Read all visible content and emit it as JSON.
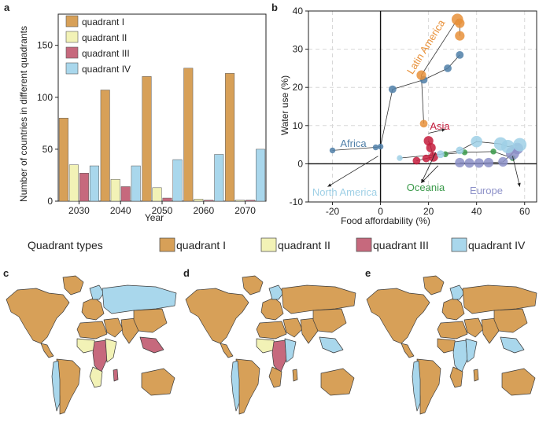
{
  "colors": {
    "q1": "#d7a058",
    "q2": "#f2f2b6",
    "q3": "#c6697d",
    "q4": "#a9d7ec",
    "ocean": "#ffffff",
    "border": "#3a3a3a",
    "africa": "#4f7fa8",
    "latin": "#e8913a",
    "asia": "#c41c3c",
    "oceania": "#3a9a4a",
    "europe": "#8c90c8",
    "north_america": "#9fd0e6"
  },
  "panel_labels": {
    "a": "a",
    "b": "b",
    "c": "c",
    "d": "d",
    "e": "e"
  },
  "chart_data": [
    {
      "type": "bar",
      "panel": "a",
      "title": "",
      "xlabel": "Year",
      "ylabel": "Number of countries in different quadrants",
      "ylim": [
        0,
        180
      ],
      "yticks": [
        0,
        50,
        100,
        150
      ],
      "categories": [
        "2030",
        "2040",
        "2050",
        "2060",
        "2070"
      ],
      "legend_position": "top-left",
      "series": [
        {
          "name": "quadrant I",
          "color_key": "q1",
          "values": [
            80,
            107,
            120,
            128,
            123
          ]
        },
        {
          "name": "quadrant II",
          "color_key": "q2",
          "values": [
            35,
            21,
            13,
            2,
            1
          ]
        },
        {
          "name": "quadrant III",
          "color_key": "q3",
          "values": [
            27,
            14,
            3,
            1,
            1
          ]
        },
        {
          "name": "quadrant IV",
          "color_key": "q4",
          "values": [
            34,
            34,
            40,
            45,
            50
          ]
        }
      ]
    },
    {
      "type": "scatter",
      "panel": "b",
      "xlabel": "Food affordability (%)",
      "ylabel": "Water use (%)",
      "xlim": [
        -30,
        65
      ],
      "ylim": [
        -10,
        40
      ],
      "xticks": [
        -20,
        0,
        20,
        40,
        60
      ],
      "yticks": [
        -10,
        0,
        10,
        20,
        30,
        40
      ],
      "grid": true,
      "regions": [
        {
          "name": "Africa",
          "color_key": "africa",
          "path": [
            [
              -20,
              3.5
            ],
            [
              -10,
              4
            ],
            [
              -2,
              4.3
            ],
            [
              0,
              4.5
            ]
          ],
          "points": [
            [
              -20,
              3.5
            ],
            [
              -2,
              4.3
            ],
            [
              0,
              4.5
            ],
            [
              5,
              19.5
            ],
            [
              18,
              22
            ],
            [
              28,
              25
            ],
            [
              33,
              28.5
            ]
          ],
          "sizes": [
            1,
            1,
            1,
            2,
            2,
            2,
            2
          ]
        },
        {
          "name": "Latin America",
          "color_key": "latin",
          "points": [
            [
              18,
              10.5
            ],
            [
              17,
              23.2
            ],
            [
              32,
              37.8
            ],
            [
              33,
              36.8
            ],
            [
              33,
              33.5
            ]
          ],
          "sizes": [
            2,
            3,
            4,
            3,
            3
          ]
        },
        {
          "name": "Asia",
          "color_key": "asia",
          "points": [
            [
              20,
              6
            ],
            [
              21,
              4.2
            ],
            [
              22,
              1.8
            ],
            [
              19,
              1.4
            ],
            [
              15,
              0.8
            ]
          ],
          "sizes": [
            3,
            3,
            3,
            2,
            2
          ]
        },
        {
          "name": "Oceania",
          "color_key": "oceania",
          "points": [
            [
              27,
              2.5
            ],
            [
              35,
              3
            ],
            [
              47,
              3.2
            ],
            [
              55,
              1.5
            ]
          ],
          "sizes": [
            1,
            1,
            1,
            1
          ]
        },
        {
          "name": "Europe",
          "color_key": "europe",
          "points": [
            [
              33,
              0.3
            ],
            [
              37,
              0.2
            ],
            [
              41,
              0.2
            ],
            [
              45,
              0.3
            ],
            [
              51,
              0.5
            ],
            [
              55,
              2.8
            ],
            [
              57,
              4
            ]
          ],
          "sizes": [
            3,
            3,
            3,
            3,
            3,
            5,
            4
          ]
        },
        {
          "name": "North America",
          "color_key": "north_america",
          "points": [
            [
              8,
              1.5
            ],
            [
              25,
              2.5
            ],
            [
              33,
              3.5
            ],
            [
              40,
              5.8
            ],
            [
              50,
              5.2
            ],
            [
              53,
              4.5
            ],
            [
              58,
              5
            ]
          ],
          "sizes": [
            1,
            2,
            2,
            4,
            5,
            5,
            5
          ]
        }
      ],
      "annotations": [
        {
          "text": "Latin America",
          "color_key": "latin"
        },
        {
          "text": "Asia",
          "color_key": "asia"
        },
        {
          "text": "Africa",
          "color_key": "africa"
        },
        {
          "text": "North America",
          "color_key": "north_america"
        },
        {
          "text": "Oceania",
          "color_key": "oceania"
        },
        {
          "text": "Europe",
          "color_key": "europe"
        }
      ]
    }
  ],
  "quadrant_legend": {
    "title": "Quadrant types",
    "items": [
      {
        "label": "quadrant I",
        "color_key": "q1"
      },
      {
        "label": "quadrant II",
        "color_key": "q2"
      },
      {
        "label": "quadrant III",
        "color_key": "q3"
      },
      {
        "label": "quadrant IV",
        "color_key": "q4"
      }
    ]
  },
  "maps": [
    {
      "panel": "c",
      "regions": {
        "north_america": "q1",
        "greenland": "q1",
        "central_america": "q1",
        "south_america": "q1",
        "south_america_west": "q4",
        "europe": "q1",
        "scandinavia": "q4",
        "russia": "q4",
        "middle_east": "q1",
        "north_africa": "q1",
        "west_africa": "q2",
        "central_africa": "q3",
        "east_africa": "q2",
        "south_africa": "q2",
        "south_asia": "q1",
        "east_asia": "q1",
        "southeast_asia": "q3",
        "australia": "q1",
        "madagascar": "q3"
      }
    },
    {
      "panel": "d",
      "regions": {
        "north_america": "q1",
        "greenland": "q1",
        "central_america": "q1",
        "south_america": "q1",
        "south_america_west": "q4",
        "europe": "q1",
        "scandinavia": "q4",
        "russia": "q1",
        "middle_east": "q1",
        "north_africa": "q1",
        "west_africa": "q2",
        "central_africa": "q3",
        "east_africa": "q4",
        "south_africa": "q1",
        "south_asia": "q1",
        "east_asia": "q1",
        "southeast_asia": "q4",
        "australia": "q1",
        "madagascar": "q1"
      }
    },
    {
      "panel": "e",
      "regions": {
        "north_america": "q1",
        "greenland": "q1",
        "central_america": "q1",
        "south_america": "q1",
        "south_america_west": "q4",
        "europe": "q1",
        "scandinavia": "q4",
        "russia": "q1",
        "middle_east": "q1",
        "north_africa": "q1",
        "west_africa": "q1",
        "central_africa": "q4",
        "east_africa": "q4",
        "south_africa": "q1",
        "south_asia": "q1",
        "east_asia": "q1",
        "southeast_asia": "q4",
        "australia": "q1",
        "madagascar": "q1"
      }
    }
  ]
}
